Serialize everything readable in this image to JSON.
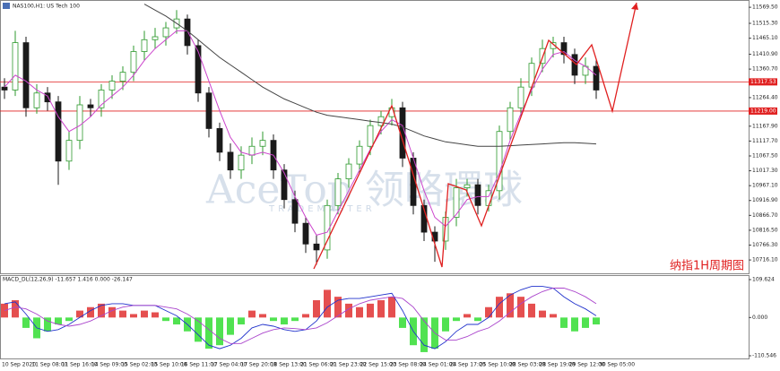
{
  "chart_data": {
    "type": "candlestick",
    "title": "NAS100,H1: US Tech 100",
    "annotation": "纳指1H周期图",
    "watermark": "AceTop 领略環球",
    "watermark_sub": "TRADEMASTER",
    "x_labels": [
      "10 Sep 2020",
      "11 Sep 08:00",
      "11 Sep 16:00",
      "14 Sep 09:00",
      "15 Sep 02:00",
      "15 Sep 10:00",
      "16 Sep 11:00",
      "17 Sep 04:00",
      "17 Sep 20:00",
      "18 Sep 13:00",
      "21 Sep 06:00",
      "21 Sep 23:00",
      "22 Sep 15:00",
      "23 Sep 08:00",
      "24 Sep 01:00",
      "24 Sep 17:00",
      "25 Sep 10:00",
      "28 Sep 03:00",
      "28 Sep 19:00",
      "29 Sep 12:00",
      "30 Sep 05:00"
    ],
    "up_color": "#2e9a2e",
    "down_color": "#1a1a1a",
    "open": [
      11300,
      11290,
      11450,
      11230,
      11280,
      11250,
      11050,
      11120,
      11240,
      11230,
      11290,
      11320,
      11350,
      11420,
      11460,
      11470,
      11500,
      11530,
      11440,
      11280,
      11160,
      11080,
      11020,
      11070,
      11100,
      11120,
      11020,
      10920,
      10840,
      10770,
      10750,
      10900,
      10990,
      11040,
      11100,
      11170,
      11200,
      11230,
      11060,
      10900,
      10810,
      10780,
      10860,
      10960,
      10970,
      10900,
      10950,
      11150,
      11230,
      11300,
      11380,
      11430,
      11450,
      11410,
      11340,
      11370
    ],
    "high": [
      11330,
      11490,
      11470,
      11310,
      11300,
      11270,
      11150,
      11270,
      11260,
      11310,
      11340,
      11370,
      11440,
      11490,
      11500,
      11520,
      11560,
      11545,
      11460,
      11300,
      11180,
      11110,
      11100,
      11130,
      11150,
      11140,
      11040,
      10950,
      10860,
      10800,
      10920,
      11010,
      11060,
      11120,
      11190,
      11220,
      11260,
      11250,
      11080,
      10920,
      10830,
      10880,
      10990,
      10990,
      10990,
      10970,
      11170,
      11250,
      11330,
      11400,
      11460,
      11470,
      11470,
      11430,
      11400,
      11390
    ],
    "low": [
      11260,
      11270,
      11200,
      11210,
      11220,
      10970,
      11020,
      11090,
      11200,
      11200,
      11260,
      11290,
      11320,
      11390,
      11430,
      11440,
      11480,
      11410,
      11250,
      11130,
      11050,
      10990,
      10990,
      11040,
      11070,
      10990,
      10890,
      10810,
      10740,
      10700,
      10720,
      10870,
      10960,
      11010,
      11070,
      11140,
      11170,
      11030,
      10870,
      10780,
      10710,
      10750,
      10830,
      10930,
      10870,
      10880,
      10920,
      11120,
      11200,
      11270,
      11350,
      11400,
      11380,
      11310,
      11310,
      11260
    ],
    "close": [
      11290,
      11450,
      11230,
      11280,
      11250,
      11050,
      11120,
      11240,
      11230,
      11290,
      11320,
      11350,
      11420,
      11460,
      11470,
      11500,
      11530,
      11440,
      11280,
      11160,
      11080,
      11020,
      11070,
      11100,
      11120,
      11020,
      10920,
      10840,
      10770,
      10750,
      10900,
      10990,
      11040,
      11100,
      11170,
      11200,
      11230,
      11060,
      10900,
      10810,
      10780,
      10860,
      10960,
      10970,
      10900,
      10950,
      11150,
      11230,
      11300,
      11380,
      11430,
      11450,
      11410,
      11340,
      11370,
      11290
    ],
    "ma": [
      {
        "color": "#cc44cc",
        "values": [
          11300,
          11340,
          11320,
          11290,
          11270,
          11200,
          11150,
          11170,
          11200,
          11240,
          11270,
          11300,
          11340,
          11390,
          11430,
          11460,
          11490,
          11490,
          11420,
          11320,
          11220,
          11130,
          11080,
          11070,
          11080,
          11070,
          11010,
          10930,
          10860,
          10800,
          10810,
          10880,
          10950,
          11020,
          11090,
          11150,
          11190,
          11170,
          11060,
          10950,
          10860,
          10830,
          10870,
          10920,
          10930,
          10930,
          11010,
          11120,
          11210,
          11290,
          11360,
          11410,
          11420,
          11390,
          11370,
          11340
        ]
      },
      {
        "color": "#444444",
        "values": [
          null,
          null,
          null,
          null,
          null,
          null,
          null,
          null,
          null,
          null,
          null,
          null,
          null,
          11580,
          11560,
          11540,
          11515,
          11490,
          11460,
          11430,
          11400,
          11375,
          11350,
          11325,
          11300,
          11280,
          11260,
          11245,
          11230,
          11215,
          11205,
          11200,
          11195,
          11190,
          11185,
          11180,
          11175,
          11165,
          11150,
          11135,
          11125,
          11115,
          11110,
          11105,
          11100,
          11100,
          11100,
          11102,
          11104,
          11106,
          11108,
          11110,
          11112,
          11112,
          11110,
          11108
        ]
      }
    ],
    "ylim": [
      10671,
      11588
    ],
    "yticks": [
      {
        "value": 11569.5,
        "label": "11569.50"
      },
      {
        "value": 11515.3,
        "label": "11515.30"
      },
      {
        "value": 11465.1,
        "label": "11465.10"
      },
      {
        "value": 11410.9,
        "label": "11410.90"
      },
      {
        "value": 11360.7,
        "label": "11360.70"
      },
      {
        "value": 11264.4,
        "label": "11264.40"
      },
      {
        "value": 11167.9,
        "label": "11167.90"
      },
      {
        "value": 11117.7,
        "label": "11117.70"
      },
      {
        "value": 11067.5,
        "label": "11067.50"
      },
      {
        "value": 11017.3,
        "label": "11017.30"
      },
      {
        "value": 10967.1,
        "label": "10967.10"
      },
      {
        "value": 10916.9,
        "label": "10916.90"
      },
      {
        "value": 10866.7,
        "label": "10866.70"
      },
      {
        "value": 10816.5,
        "label": "10816.50"
      },
      {
        "value": 10766.3,
        "label": "10766.30"
      },
      {
        "value": 10716.1,
        "label": "10716.10"
      }
    ],
    "levels": [
      {
        "value": 11317.53,
        "label": "11317.53",
        "color": "#e02020"
      },
      {
        "value": 11219,
        "label": "11219.00",
        "color": "#e02020"
      }
    ],
    "macd": {
      "title": "MACD_DL(12,26,9) -11.657 1.416 0.000 -26.147",
      "ylim": [
        -110.546,
        109.624
      ],
      "yticks": [
        109.624,
        {
          "value": 0,
          "label": "0.000"
        },
        -110.546
      ],
      "pos_color": "#e03030",
      "neg_color": "#33dd33",
      "histogram": [
        40,
        50,
        -30,
        -60,
        -40,
        -20,
        -10,
        20,
        30,
        40,
        30,
        20,
        10,
        20,
        15,
        -10,
        -20,
        -40,
        -70,
        -90,
        -80,
        -50,
        -20,
        20,
        10,
        -10,
        -20,
        -10,
        10,
        50,
        80,
        60,
        40,
        30,
        40,
        50,
        60,
        -30,
        -80,
        -100,
        -90,
        -40,
        -10,
        10,
        -10,
        30,
        60,
        70,
        60,
        40,
        20,
        10,
        -30,
        -40,
        -30,
        -20
      ],
      "lines": [
        {
          "color": "#2233cc",
          "values": [
            40,
            45,
            10,
            -30,
            -40,
            -35,
            -20,
            0,
            20,
            35,
            40,
            40,
            35,
            35,
            35,
            20,
            5,
            -20,
            -50,
            -80,
            -90,
            -80,
            -60,
            -30,
            -20,
            -25,
            -35,
            -40,
            -35,
            -10,
            30,
            50,
            55,
            55,
            60,
            65,
            70,
            20,
            -40,
            -80,
            -90,
            -70,
            -40,
            -20,
            -20,
            0,
            40,
            65,
            80,
            90,
            90,
            85,
            60,
            40,
            25,
            5
          ]
        },
        {
          "color": "#aa44cc",
          "values": [
            20,
            30,
            25,
            10,
            -10,
            -20,
            -25,
            -20,
            -10,
            5,
            20,
            30,
            35,
            35,
            35,
            30,
            25,
            10,
            -10,
            -35,
            -60,
            -75,
            -75,
            -60,
            -45,
            -35,
            -30,
            -32,
            -35,
            -30,
            -15,
            5,
            25,
            40,
            50,
            55,
            60,
            55,
            30,
            -10,
            -45,
            -65,
            -65,
            -55,
            -40,
            -30,
            -10,
            15,
            40,
            60,
            75,
            85,
            85,
            75,
            60,
            40
          ]
        }
      ]
    }
  }
}
